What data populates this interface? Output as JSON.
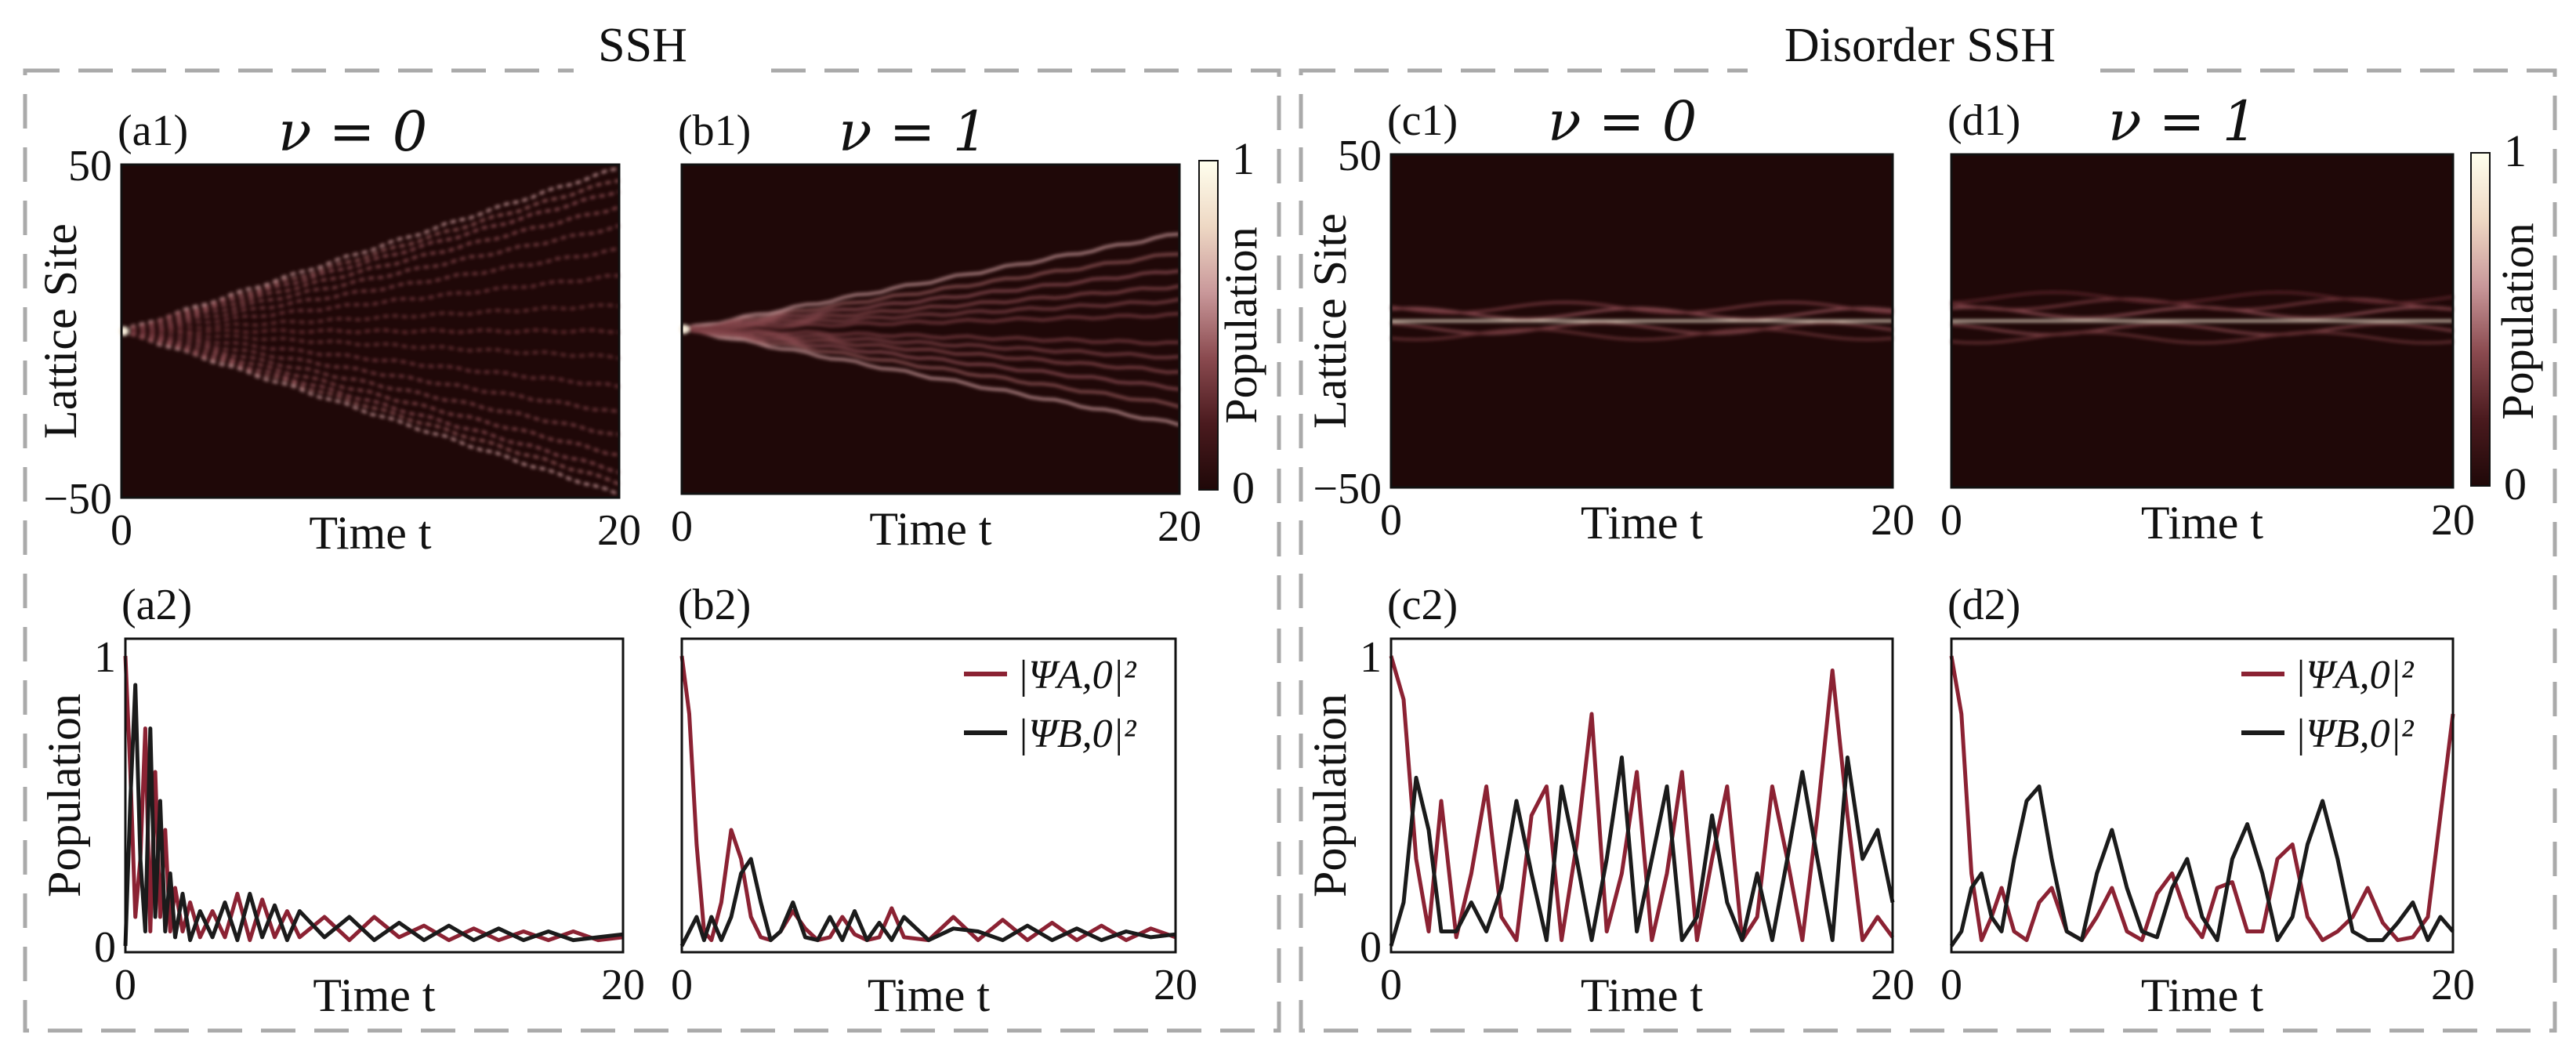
{
  "colors": {
    "seriesA": "#8B2233",
    "seriesB": "#1b1b1b",
    "heatBg": "#1f0808",
    "colormap": [
      "#1f0808",
      "#4a1a1e",
      "#8a4a4f",
      "#c9989a",
      "#eed8c4",
      "#ffffee"
    ]
  },
  "groups": [
    {
      "id": "ssh",
      "title": "SSH"
    },
    {
      "id": "disorder",
      "title": "Disorder SSH"
    }
  ],
  "colorbar": {
    "label": "Population",
    "min_label": "0",
    "max_label": "1"
  },
  "chart_data": [
    {
      "id": "a1",
      "type": "heatmap",
      "panel_label": "(a1)",
      "title": "ν = 0",
      "pattern": "ballistic-ssh-nu0",
      "xlabel": "Time t",
      "ylabel": "Lattice Site",
      "xlim": [
        0,
        20
      ],
      "ylim": [
        -50,
        50
      ],
      "xticks": [
        {
          "v": 0,
          "label": "0"
        },
        {
          "v": 20,
          "label": "20"
        }
      ],
      "yticks": [
        {
          "v": 50,
          "label": "50"
        },
        {
          "v": -50,
          "label": "−50"
        }
      ]
    },
    {
      "id": "b1",
      "type": "heatmap",
      "panel_label": "(b1)",
      "title": "ν = 1",
      "pattern": "ballistic-ssh-nu1",
      "xlabel": "Time t",
      "ylabel": "",
      "xlim": [
        0,
        20
      ],
      "ylim": [
        -50,
        50
      ],
      "xticks": [
        {
          "v": 0,
          "label": "0"
        },
        {
          "v": 20,
          "label": "20"
        }
      ],
      "yticks": []
    },
    {
      "id": "c1",
      "type": "heatmap",
      "panel_label": "(c1)",
      "title": "ν = 0",
      "pattern": "localized-disorder-nu0",
      "xlabel": "Time t",
      "ylabel": "Lattice Site",
      "xlim": [
        0,
        20
      ],
      "ylim": [
        -50,
        50
      ],
      "xticks": [
        {
          "v": 0,
          "label": "0"
        },
        {
          "v": 20,
          "label": "20"
        }
      ],
      "yticks": [
        {
          "v": 50,
          "label": "50"
        },
        {
          "v": -50,
          "label": "−50"
        }
      ]
    },
    {
      "id": "d1",
      "type": "heatmap",
      "panel_label": "(d1)",
      "title": "ν = 1",
      "pattern": "localized-disorder-nu1",
      "xlabel": "Time t",
      "ylabel": "",
      "xlim": [
        0,
        20
      ],
      "ylim": [
        -50,
        50
      ],
      "xticks": [
        {
          "v": 0,
          "label": "0"
        },
        {
          "v": 20,
          "label": "20"
        }
      ],
      "yticks": []
    },
    {
      "id": "a2",
      "type": "line",
      "panel_label": "(a2)",
      "xlabel": "Time t",
      "ylabel": "Population",
      "xlim": [
        0,
        20
      ],
      "ylim": [
        0,
        1
      ],
      "xticks": [
        {
          "v": 0,
          "label": "0"
        },
        {
          "v": 20,
          "label": "20"
        }
      ],
      "yticks": [
        {
          "v": 1,
          "label": "1"
        },
        {
          "v": 0,
          "label": "0"
        }
      ],
      "series": [
        {
          "name": "|ΨA,0|²",
          "x": [
            0,
            0.2,
            0.4,
            0.6,
            0.8,
            1.0,
            1.2,
            1.4,
            1.6,
            1.8,
            2.0,
            2.3,
            2.6,
            3.0,
            3.5,
            4.0,
            4.5,
            5.0,
            5.5,
            6.0,
            6.5,
            7.0,
            8.0,
            9.0,
            10.0,
            11.0,
            12.0,
            13.0,
            14.0,
            15.0,
            16.0,
            17.0,
            18.0,
            19.0,
            20.0
          ],
          "y": [
            1,
            0.6,
            0.1,
            0.3,
            0.75,
            0.05,
            0.6,
            0.1,
            0.4,
            0.05,
            0.2,
            0.05,
            0.15,
            0.03,
            0.12,
            0.03,
            0.18,
            0.02,
            0.16,
            0.03,
            0.12,
            0.03,
            0.1,
            0.02,
            0.1,
            0.03,
            0.07,
            0.02,
            0.06,
            0.02,
            0.05,
            0.02,
            0.05,
            0.02,
            0.03
          ]
        },
        {
          "name": "|ΨB,0|²",
          "x": [
            0,
            0.2,
            0.4,
            0.6,
            0.8,
            1.0,
            1.2,
            1.4,
            1.6,
            1.8,
            2.0,
            2.3,
            2.6,
            3.0,
            3.5,
            4.0,
            4.5,
            5.0,
            5.5,
            6.0,
            6.5,
            7.0,
            8.0,
            9.0,
            10.0,
            11.0,
            12.0,
            13.0,
            14.0,
            15.0,
            16.0,
            17.0,
            18.0,
            19.0,
            20.0
          ],
          "y": [
            0,
            0.5,
            0.9,
            0.3,
            0.05,
            0.75,
            0.1,
            0.5,
            0.05,
            0.25,
            0.03,
            0.18,
            0.02,
            0.12,
            0.03,
            0.15,
            0.02,
            0.18,
            0.03,
            0.14,
            0.02,
            0.12,
            0.03,
            0.1,
            0.02,
            0.08,
            0.02,
            0.07,
            0.02,
            0.06,
            0.02,
            0.05,
            0.02,
            0.03,
            0.04
          ]
        }
      ]
    },
    {
      "id": "b2",
      "type": "line",
      "panel_label": "(b2)",
      "xlabel": "Time t",
      "ylabel": "",
      "xlim": [
        0,
        20
      ],
      "ylim": [
        0,
        1
      ],
      "xticks": [
        {
          "v": 0,
          "label": "0"
        },
        {
          "v": 20,
          "label": "20"
        }
      ],
      "yticks": [],
      "legend": true,
      "series": [
        {
          "name": "|ΨA,0|²",
          "x": [
            0,
            0.3,
            0.6,
            0.9,
            1.2,
            1.6,
            2.0,
            2.4,
            2.8,
            3.2,
            3.6,
            4.0,
            4.5,
            5.0,
            5.5,
            6.0,
            6.5,
            7.0,
            7.5,
            8.0,
            8.5,
            9.0,
            10.0,
            11.0,
            12.0,
            13.0,
            14.0,
            15.0,
            16.0,
            17.0,
            18.0,
            19.0,
            20.0
          ],
          "y": [
            1,
            0.8,
            0.35,
            0.05,
            0.02,
            0.15,
            0.4,
            0.3,
            0.1,
            0.03,
            0.02,
            0.05,
            0.12,
            0.06,
            0.02,
            0.03,
            0.1,
            0.04,
            0.02,
            0.03,
            0.13,
            0.03,
            0.02,
            0.1,
            0.02,
            0.09,
            0.02,
            0.08,
            0.02,
            0.07,
            0.02,
            0.06,
            0.03
          ]
        },
        {
          "name": "|ΨB,0|²",
          "x": [
            0,
            0.3,
            0.6,
            0.9,
            1.2,
            1.6,
            2.0,
            2.4,
            2.8,
            3.2,
            3.6,
            4.0,
            4.5,
            5.0,
            5.5,
            6.0,
            6.5,
            7.0,
            7.5,
            8.0,
            8.5,
            9.0,
            10.0,
            11.0,
            12.0,
            13.0,
            14.0,
            15.0,
            16.0,
            17.0,
            18.0,
            19.0,
            20.0
          ],
          "y": [
            0,
            0.05,
            0.1,
            0.02,
            0.1,
            0.02,
            0.1,
            0.25,
            0.3,
            0.15,
            0.02,
            0.05,
            0.15,
            0.03,
            0.02,
            0.1,
            0.02,
            0.12,
            0.02,
            0.08,
            0.02,
            0.1,
            0.02,
            0.06,
            0.05,
            0.02,
            0.07,
            0.02,
            0.06,
            0.02,
            0.05,
            0.03,
            0.04
          ]
        }
      ]
    },
    {
      "id": "c2",
      "type": "line",
      "panel_label": "(c2)",
      "xlabel": "Time t",
      "ylabel": "Population",
      "xlim": [
        0,
        20
      ],
      "ylim": [
        0,
        1
      ],
      "xticks": [
        {
          "v": 0,
          "label": "0"
        },
        {
          "v": 20,
          "label": "20"
        }
      ],
      "yticks": [
        {
          "v": 1,
          "label": "1"
        },
        {
          "v": 0,
          "label": "0"
        }
      ],
      "series": [
        {
          "name": "|ΨA,0|²",
          "x": [
            0,
            0.5,
            1.0,
            1.5,
            2.0,
            2.6,
            3.2,
            3.8,
            4.4,
            5.0,
            5.6,
            6.2,
            6.8,
            7.4,
            8.0,
            8.6,
            9.2,
            9.8,
            10.4,
            11.0,
            11.6,
            12.2,
            12.8,
            13.4,
            14.0,
            14.6,
            15.2,
            15.8,
            16.4,
            17.0,
            17.6,
            18.2,
            18.8,
            19.4,
            20.0
          ],
          "y": [
            1,
            0.85,
            0.3,
            0.05,
            0.5,
            0.03,
            0.25,
            0.55,
            0.1,
            0.02,
            0.45,
            0.55,
            0.02,
            0.35,
            0.8,
            0.05,
            0.25,
            0.6,
            0.02,
            0.25,
            0.6,
            0.02,
            0.3,
            0.55,
            0.02,
            0.1,
            0.55,
            0.3,
            0.02,
            0.45,
            0.95,
            0.45,
            0.02,
            0.1,
            0.03
          ]
        },
        {
          "name": "|ΨB,0|²",
          "x": [
            0,
            0.5,
            1.0,
            1.5,
            2.0,
            2.6,
            3.2,
            3.8,
            4.4,
            5.0,
            5.6,
            6.2,
            6.8,
            7.4,
            8.0,
            8.6,
            9.2,
            9.8,
            10.4,
            11.0,
            11.6,
            12.2,
            12.8,
            13.4,
            14.0,
            14.6,
            15.2,
            15.8,
            16.4,
            17.0,
            17.6,
            18.2,
            18.8,
            19.4,
            20.0
          ],
          "y": [
            0,
            0.15,
            0.58,
            0.4,
            0.05,
            0.05,
            0.15,
            0.05,
            0.2,
            0.5,
            0.25,
            0.02,
            0.55,
            0.3,
            0.02,
            0.3,
            0.65,
            0.05,
            0.3,
            0.55,
            0.02,
            0.1,
            0.45,
            0.15,
            0.02,
            0.25,
            0.02,
            0.3,
            0.6,
            0.3,
            0.02,
            0.65,
            0.3,
            0.4,
            0.15
          ]
        }
      ]
    },
    {
      "id": "d2",
      "type": "line",
      "panel_label": "(d2)",
      "xlabel": "Time t",
      "ylabel": "",
      "xlim": [
        0,
        20
      ],
      "ylim": [
        0,
        1
      ],
      "xticks": [
        {
          "v": 0,
          "label": "0"
        },
        {
          "v": 20,
          "label": "20"
        }
      ],
      "yticks": [],
      "legend": true,
      "series": [
        {
          "name": "|ΨA,0|²",
          "x": [
            0,
            0.4,
            0.8,
            1.2,
            1.6,
            2.0,
            2.5,
            3.0,
            3.5,
            4.0,
            4.6,
            5.2,
            5.8,
            6.4,
            7.0,
            7.6,
            8.2,
            8.8,
            9.4,
            10.0,
            10.6,
            11.2,
            11.8,
            12.4,
            13.0,
            13.6,
            14.2,
            14.8,
            15.4,
            16.0,
            16.6,
            17.2,
            17.8,
            18.4,
            19.0,
            19.5,
            20.0
          ],
          "y": [
            1,
            0.8,
            0.25,
            0.02,
            0.1,
            0.2,
            0.05,
            0.02,
            0.15,
            0.2,
            0.05,
            0.02,
            0.1,
            0.2,
            0.05,
            0.02,
            0.18,
            0.25,
            0.1,
            0.03,
            0.2,
            0.22,
            0.05,
            0.05,
            0.3,
            0.35,
            0.1,
            0.02,
            0.05,
            0.1,
            0.2,
            0.08,
            0.02,
            0.03,
            0.1,
            0.45,
            0.8
          ]
        },
        {
          "name": "|ΨB,0|²",
          "x": [
            0,
            0.4,
            0.8,
            1.2,
            1.6,
            2.0,
            2.5,
            3.0,
            3.5,
            4.0,
            4.6,
            5.2,
            5.8,
            6.4,
            7.0,
            7.6,
            8.2,
            8.8,
            9.4,
            10.0,
            10.6,
            11.2,
            11.8,
            12.4,
            13.0,
            13.6,
            14.2,
            14.8,
            15.4,
            16.0,
            16.6,
            17.2,
            17.8,
            18.4,
            19.0,
            19.5,
            20.0
          ],
          "y": [
            0,
            0.05,
            0.2,
            0.25,
            0.1,
            0.05,
            0.3,
            0.5,
            0.55,
            0.3,
            0.05,
            0.02,
            0.25,
            0.4,
            0.2,
            0.05,
            0.03,
            0.2,
            0.3,
            0.1,
            0.02,
            0.3,
            0.42,
            0.25,
            0.02,
            0.1,
            0.35,
            0.5,
            0.3,
            0.05,
            0.02,
            0.02,
            0.08,
            0.15,
            0.02,
            0.1,
            0.05
          ]
        }
      ]
    }
  ]
}
